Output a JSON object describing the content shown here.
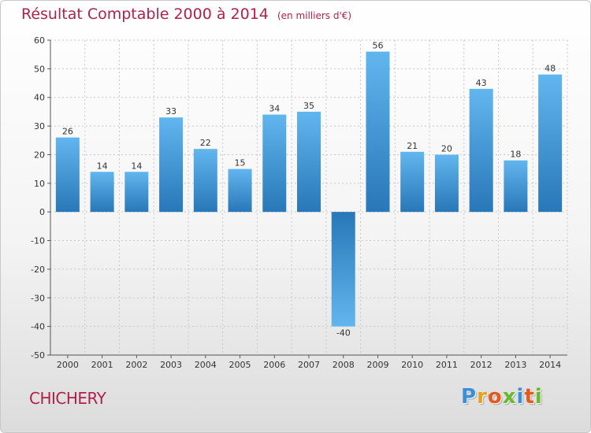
{
  "header": {
    "title": "Résultat Comptable 2000 à 2014",
    "subtitle": "(en milliers d'€)"
  },
  "footer": {
    "town": "CHICHERY",
    "brand": "Proxiti"
  },
  "colors": {
    "title": "#b0214a",
    "bar_light": "#5fb3ec",
    "bar_dark": "#2a7dbf",
    "grid": "#c8c8c8",
    "axis": "#555555"
  },
  "chart_data": {
    "type": "bar",
    "title": "Résultat Comptable 2000 à 2014",
    "subtitle": "(en milliers d'€)",
    "xlabel": "",
    "ylabel": "",
    "categories": [
      "2000",
      "2001",
      "2002",
      "2003",
      "2004",
      "2005",
      "2006",
      "2007",
      "2008",
      "2009",
      "2010",
      "2011",
      "2012",
      "2013",
      "2014"
    ],
    "values": [
      26,
      14,
      14,
      33,
      22,
      15,
      34,
      35,
      -40,
      56,
      21,
      20,
      43,
      18,
      48
    ],
    "ylim": [
      -50,
      60
    ],
    "yticks": [
      60,
      50,
      40,
      30,
      20,
      10,
      0,
      -10,
      -20,
      -30,
      -40,
      -50
    ],
    "grid": true,
    "legend": "none"
  }
}
